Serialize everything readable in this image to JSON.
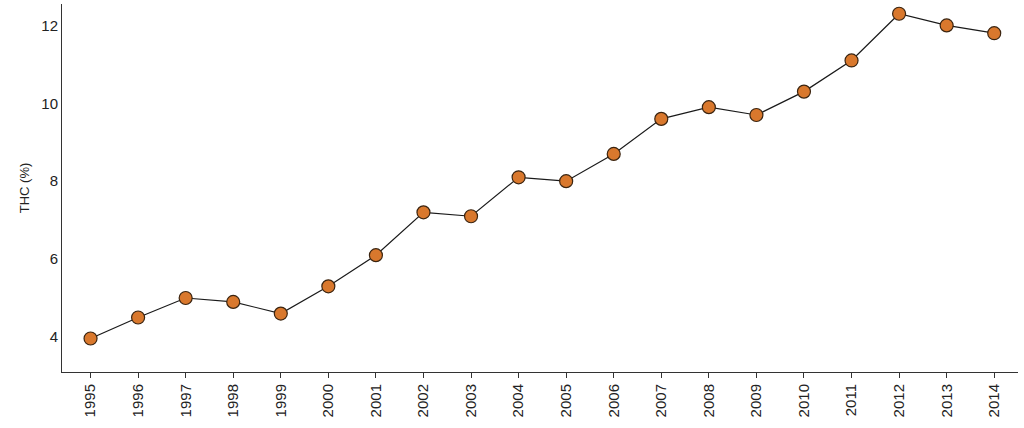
{
  "chart_data": {
    "type": "line",
    "y_label": "THC (%)",
    "categories": [
      "1995",
      "1996",
      "1997",
      "1998",
      "1999",
      "2000",
      "2001",
      "2002",
      "2003",
      "2004",
      "2005",
      "2006",
      "2007",
      "2008",
      "2009",
      "2010",
      "2011",
      "2012",
      "2013",
      "2014"
    ],
    "values": [
      3.96,
      4.5,
      5.0,
      4.9,
      4.6,
      5.3,
      6.1,
      7.2,
      7.1,
      8.1,
      8.0,
      8.7,
      9.6,
      9.9,
      9.7,
      10.3,
      11.1,
      12.3,
      12.0,
      11.8
    ],
    "color": "#d9782d",
    "marker": "circle",
    "line_style": "solid",
    "ylim": [
      3.1,
      12.55
    ],
    "yticks": [
      4,
      6,
      8,
      10,
      12
    ],
    "grid": false
  }
}
